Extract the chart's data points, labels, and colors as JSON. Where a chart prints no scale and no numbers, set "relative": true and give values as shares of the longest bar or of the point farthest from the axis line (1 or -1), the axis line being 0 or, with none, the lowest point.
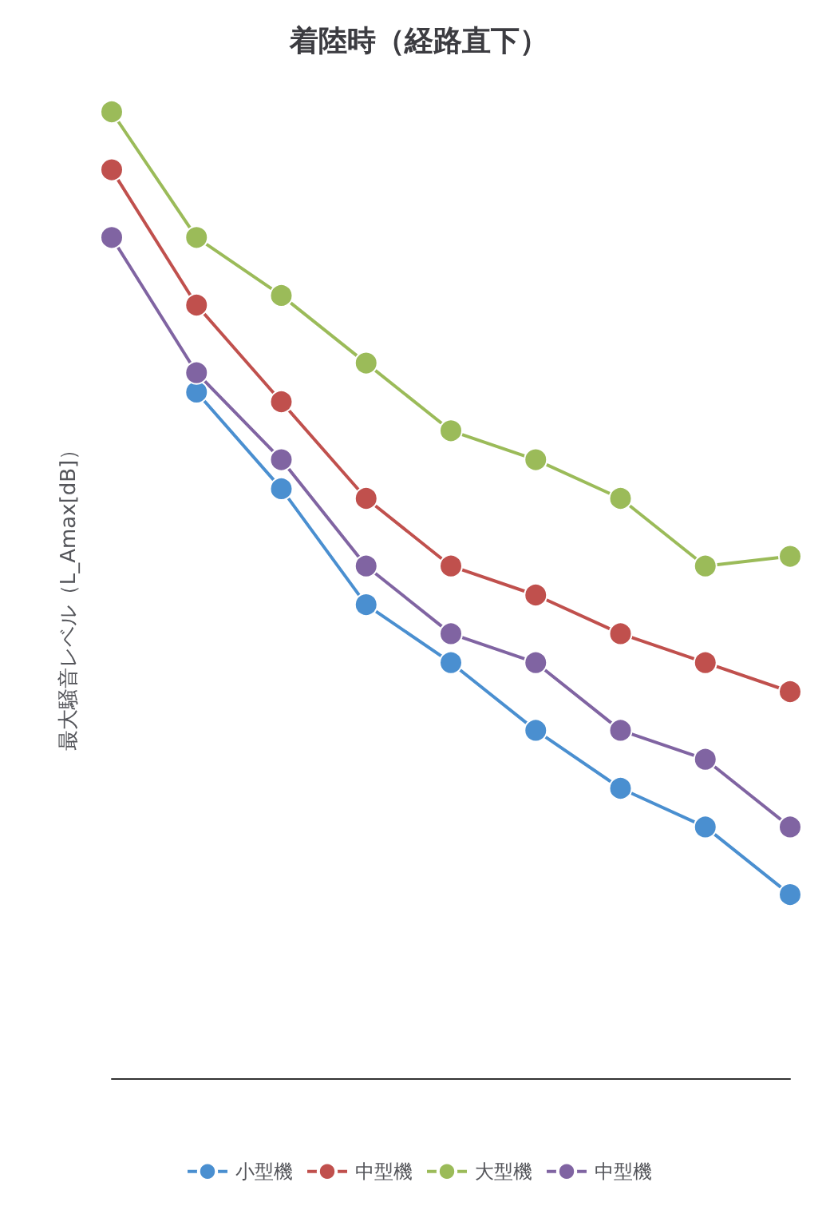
{
  "chart_data": {
    "type": "line",
    "title": "着陸時（経路直下）",
    "ylabel": "最大騒音レベル（L_Amax[dB]）",
    "relative": true,
    "categories": [
      null,
      null,
      null,
      null,
      null,
      null,
      null,
      null,
      null
    ],
    "series": [
      {
        "name": "小型機",
        "color": "#4a8fd0",
        "values": [
          null,
          0.71,
          0.61,
          0.49,
          0.43,
          0.36,
          0.3,
          0.26,
          0.19
        ]
      },
      {
        "name": "中型機",
        "color": "#c0504d",
        "values": [
          0.94,
          0.8,
          0.7,
          0.6,
          0.53,
          0.5,
          0.46,
          0.43,
          0.4
        ]
      },
      {
        "name": "大型機",
        "color": "#9bbb59",
        "values": [
          1,
          0.87,
          0.81,
          0.74,
          0.67,
          0.64,
          0.6,
          0.53,
          0.54
        ]
      },
      {
        "name": "中型機",
        "color": "#8064a2",
        "values": [
          0.87,
          0.73,
          0.64,
          0.53,
          0.46,
          0.43,
          0.36,
          0.33,
          0.26
        ]
      }
    ],
    "marker": "circle",
    "legend": "bottom",
    "grid": false
  }
}
